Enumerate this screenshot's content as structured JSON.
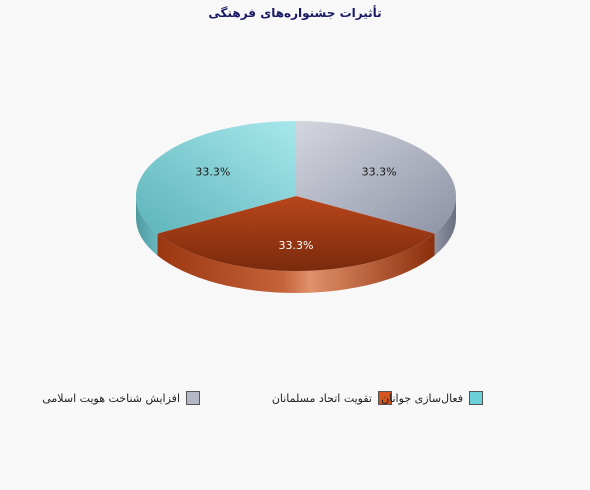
{
  "chart_data": {
    "type": "pie",
    "title": "تأثیرات جشنواره‌های فرهنگی",
    "style": "3d-tilted",
    "series": [
      {
        "name": "افزایش شناخت هویت اسلامی",
        "value": 33.3,
        "label": "33.3%",
        "color": "#b4b8c6"
      },
      {
        "name": "تقویت اتحاد مسلمانان",
        "value": 33.3,
        "label": "33.3%",
        "color": "#d4541e"
      },
      {
        "name": "فعال‌سازی جوانان",
        "value": 33.3,
        "label": "33.3%",
        "color": "#6cd0d8"
      }
    ],
    "legend_position": "bottom"
  }
}
